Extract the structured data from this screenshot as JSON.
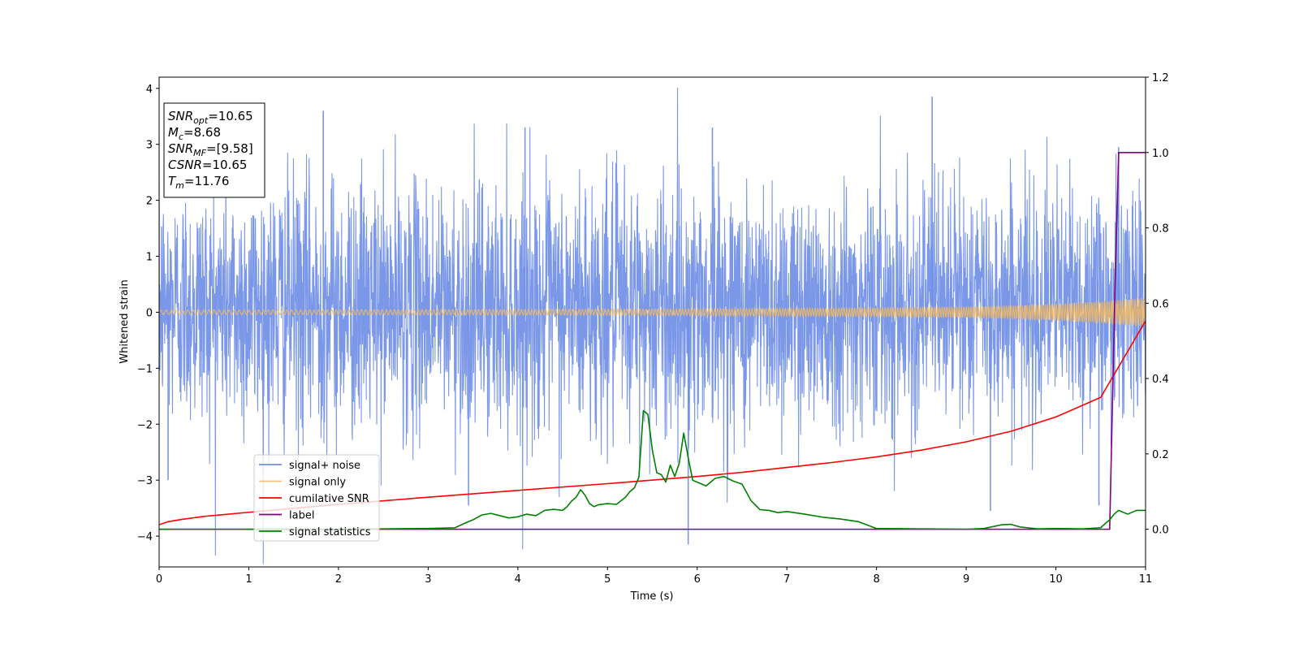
{
  "chart_data": {
    "type": "line",
    "title": "",
    "xlabel": "Time (s)",
    "ylabel": "Whitened strain",
    "y2label": "",
    "xlim": [
      0,
      11
    ],
    "ylim": [
      -4.55,
      4.2
    ],
    "y2lim": [
      -0.1,
      1.2
    ],
    "xticks": [
      0,
      1,
      2,
      3,
      4,
      5,
      6,
      7,
      8,
      9,
      10,
      11
    ],
    "yticks": [
      -4,
      -3,
      -2,
      -1,
      0,
      1,
      2,
      3,
      4
    ],
    "y2ticks": [
      0.0,
      0.2,
      0.4,
      0.6,
      0.8,
      1.0,
      1.2
    ],
    "grid": false,
    "legend_position": "lower-left",
    "colors": {
      "noise": "#6f8ee6",
      "signal": "#f5b85c",
      "csnr": "#ff0000",
      "label": "#800080",
      "stats": "#008000"
    },
    "annotation": {
      "lines": [
        {
          "var": "SNR",
          "sub": "opt",
          "value": "=10.65"
        },
        {
          "var": "M",
          "sub": "c",
          "value": "=8.68"
        },
        {
          "var": "SNR",
          "sub": "MF",
          "value": "=[9.58]"
        },
        {
          "var": "CSNR",
          "sub": "",
          "value": "=10.65"
        },
        {
          "var": "T",
          "sub": "m",
          "value": "=11.76"
        }
      ]
    },
    "noise_envelope": {
      "x": [
        0,
        1,
        2,
        3,
        4,
        5,
        6,
        7,
        8,
        9,
        10,
        11
      ],
      "typical_upper": [
        1.9,
        2.0,
        2.0,
        1.9,
        1.9,
        2.0,
        2.0,
        1.9,
        1.9,
        1.9,
        1.9,
        1.9
      ],
      "typical_lower": [
        -1.6,
        -1.8,
        -1.8,
        -1.7,
        -1.8,
        -1.8,
        -1.8,
        -1.7,
        -1.6,
        -1.5,
        -1.5,
        -1.6
      ],
      "spikes": [
        {
          "x": 1.83,
          "y": 3.6
        },
        {
          "x": 8.62,
          "y": 3.85
        },
        {
          "x": 5.9,
          "y": -4.15
        },
        {
          "x": 0.1,
          "y": -3.0
        },
        {
          "x": 4.08,
          "y": 3.3
        },
        {
          "x": 10.7,
          "y": 2.95
        },
        {
          "x": 9.27,
          "y": -3.55
        },
        {
          "x": 3.45,
          "y": -3.45
        },
        {
          "x": 6.17,
          "y": 3.3
        },
        {
          "x": 10.48,
          "y": -3.45
        }
      ]
    },
    "series": [
      {
        "name": "signal+ noise",
        "kind": "noise",
        "color": "#6f8ee6"
      },
      {
        "name": "signal only",
        "kind": "chirp",
        "color": "#f5b85c",
        "amplitude_x": [
          0,
          2,
          4,
          6,
          7,
          8,
          9,
          9.5,
          10,
          10.5,
          11
        ],
        "amplitude_y": [
          0.04,
          0.045,
          0.05,
          0.06,
          0.07,
          0.08,
          0.1,
          0.12,
          0.15,
          0.2,
          0.26
        ]
      },
      {
        "name": "cumilative SNR",
        "kind": "line2",
        "color": "#ff0000",
        "x": [
          0,
          0.1,
          0.25,
          0.5,
          1,
          2,
          3,
          4,
          5,
          6,
          6.5,
          7,
          7.5,
          8,
          8.5,
          9,
          9.5,
          10,
          10.5,
          11
        ],
        "y": [
          0.012,
          0.02,
          0.026,
          0.034,
          0.045,
          0.066,
          0.085,
          0.103,
          0.121,
          0.14,
          0.151,
          0.164,
          0.177,
          0.192,
          0.21,
          0.232,
          0.26,
          0.298,
          0.35,
          0.553
        ]
      },
      {
        "name": "label",
        "kind": "line2",
        "color": "#800080",
        "x": [
          0,
          10.6,
          10.66,
          10.7,
          11
        ],
        "y": [
          0,
          0,
          0.65,
          1.0,
          1.0
        ]
      },
      {
        "name": "signal statistics",
        "kind": "line2",
        "color": "#008000",
        "x": [
          0,
          1,
          2,
          2.5,
          3,
          3.3,
          3.4,
          3.5,
          3.6,
          3.7,
          3.8,
          3.9,
          4.0,
          4.1,
          4.2,
          4.3,
          4.4,
          4.5,
          4.55,
          4.6,
          4.65,
          4.7,
          4.75,
          4.8,
          4.85,
          4.9,
          5.0,
          5.1,
          5.2,
          5.25,
          5.3,
          5.35,
          5.4,
          5.45,
          5.5,
          5.55,
          5.6,
          5.65,
          5.7,
          5.75,
          5.8,
          5.85,
          5.9,
          5.95,
          6.0,
          6.1,
          6.2,
          6.3,
          6.4,
          6.5,
          6.6,
          6.7,
          6.8,
          6.9,
          7.0,
          7.2,
          7.4,
          7.6,
          7.8,
          8.0,
          8.5,
          9.0,
          9.2,
          9.4,
          9.5,
          9.6,
          9.8,
          10.0,
          10.3,
          10.5,
          10.55,
          10.6,
          10.65,
          10.7,
          10.8,
          10.9,
          11.0
        ],
        "y": [
          0,
          0,
          0,
          0.001,
          0.002,
          0.004,
          0.015,
          0.025,
          0.038,
          0.042,
          0.036,
          0.03,
          0.033,
          0.04,
          0.036,
          0.05,
          0.053,
          0.05,
          0.06,
          0.075,
          0.085,
          0.105,
          0.09,
          0.068,
          0.06,
          0.065,
          0.068,
          0.066,
          0.085,
          0.1,
          0.11,
          0.138,
          0.315,
          0.305,
          0.21,
          0.15,
          0.145,
          0.125,
          0.17,
          0.14,
          0.175,
          0.255,
          0.19,
          0.13,
          0.125,
          0.115,
          0.135,
          0.14,
          0.128,
          0.12,
          0.076,
          0.052,
          0.05,
          0.044,
          0.047,
          0.04,
          0.032,
          0.027,
          0.02,
          0.002,
          0.001,
          0,
          0.002,
          0.012,
          0.013,
          0.006,
          0.001,
          0.002,
          0.001,
          0.004,
          0.015,
          0.025,
          0.04,
          0.05,
          0.04,
          0.05,
          0.05
        ]
      }
    ]
  }
}
